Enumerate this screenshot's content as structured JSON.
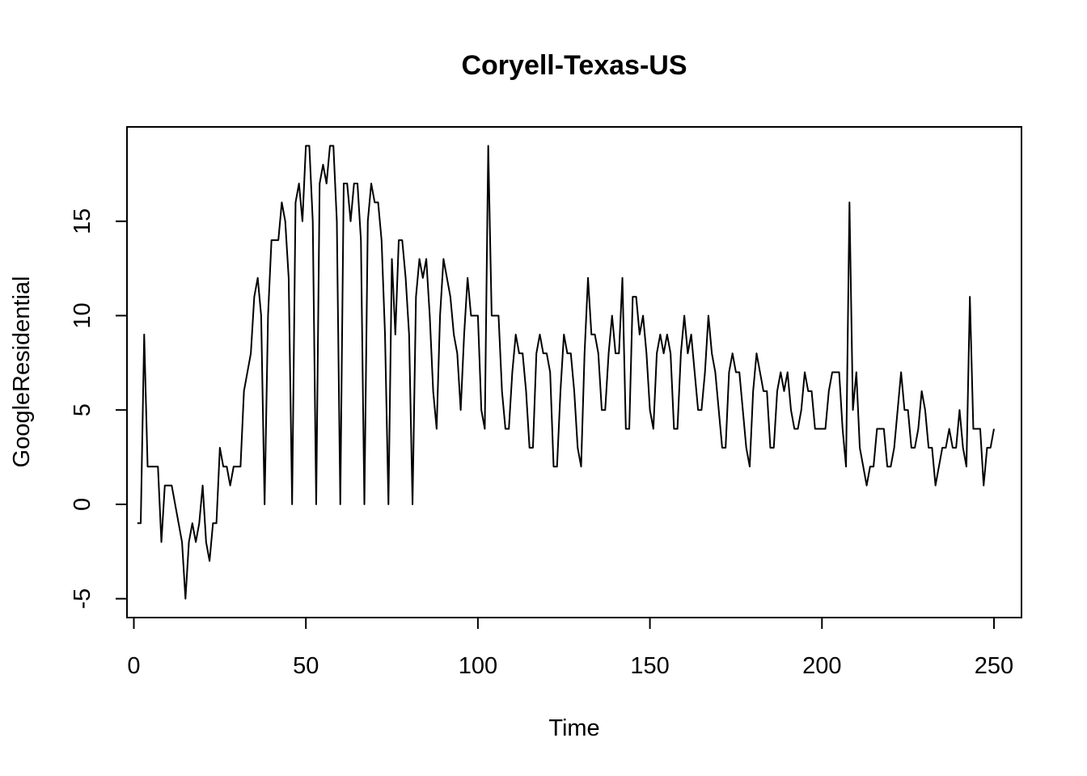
{
  "chart_data": {
    "type": "line",
    "title": "Coryell-Texas-US",
    "xlabel": "Time",
    "ylabel": "GoogleResidential",
    "xlim": [
      -2,
      258
    ],
    "ylim": [
      -6,
      20
    ],
    "x_ticks": [
      0,
      50,
      100,
      150,
      200,
      250
    ],
    "y_ticks": [
      -5,
      0,
      5,
      10,
      15
    ],
    "grid": false,
    "legend": "none",
    "line_color": "#000000",
    "series": [
      {
        "x_start": 1,
        "values": [
          -1,
          -1,
          9,
          2,
          2,
          2,
          2,
          -2,
          1,
          1,
          1,
          0,
          -1,
          -2,
          -5,
          -2,
          -1,
          -2,
          -1,
          1,
          -2,
          -3,
          -1,
          -1,
          3,
          2,
          2,
          1,
          2,
          2,
          2,
          6,
          7,
          8,
          11,
          12,
          10,
          0,
          10,
          14,
          14,
          14,
          16,
          15,
          12,
          0,
          16,
          17,
          15,
          19,
          19,
          15,
          0,
          17,
          18,
          17,
          19,
          19,
          15,
          0,
          17,
          17,
          15,
          17,
          17,
          14,
          0,
          15,
          17,
          16,
          16,
          14,
          9,
          0,
          13,
          9,
          14,
          14,
          12,
          9,
          0,
          11,
          13,
          12,
          13,
          10,
          6,
          4,
          10,
          13,
          12,
          11,
          9,
          8,
          5,
          9,
          12,
          10,
          10,
          10,
          5,
          4,
          19,
          10,
          10,
          10,
          6,
          4,
          4,
          7,
          9,
          8,
          8,
          6,
          3,
          3,
          8,
          9,
          8,
          8,
          7,
          2,
          2,
          6,
          9,
          8,
          8,
          6,
          3,
          2,
          8,
          12,
          9,
          9,
          8,
          5,
          5,
          8,
          10,
          8,
          8,
          12,
          4,
          4,
          11,
          11,
          9,
          10,
          8,
          5,
          4,
          8,
          9,
          8,
          9,
          8,
          4,
          4,
          8,
          10,
          8,
          9,
          7,
          5,
          5,
          7,
          10,
          8,
          7,
          5,
          3,
          3,
          7,
          8,
          7,
          7,
          5,
          3,
          2,
          6,
          8,
          7,
          6,
          6,
          3,
          3,
          6,
          7,
          6,
          7,
          5,
          4,
          4,
          5,
          7,
          6,
          6,
          4,
          4,
          4,
          4,
          6,
          7,
          7,
          7,
          4,
          2,
          16,
          5,
          7,
          3,
          2,
          1,
          2,
          2,
          4,
          4,
          4,
          2,
          2,
          3,
          5,
          7,
          5,
          5,
          3,
          3,
          4,
          6,
          5,
          3,
          3,
          1,
          2,
          3,
          3,
          4,
          3,
          3,
          5,
          3,
          2,
          11,
          4,
          4,
          4,
          1,
          3,
          3,
          4
        ]
      }
    ]
  }
}
